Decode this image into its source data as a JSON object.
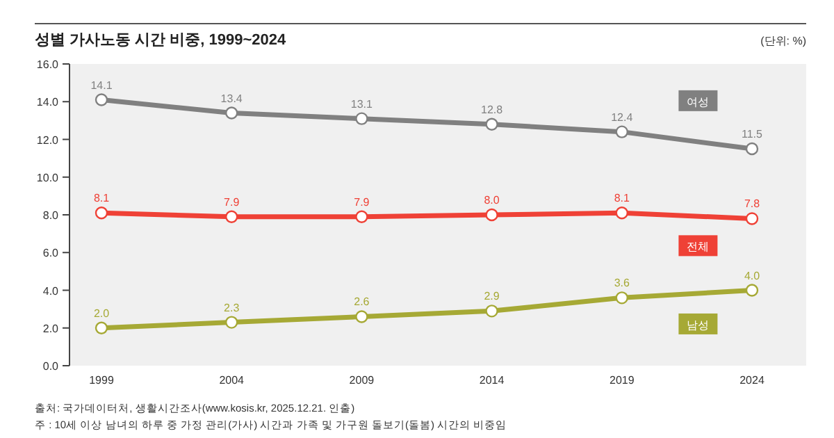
{
  "chart_data": {
    "type": "line",
    "title": "성별 가사노동 시간 비중, 1999~2024",
    "ylabel": "(단위: %)",
    "categories": [
      "1999",
      "2004",
      "2009",
      "2014",
      "2019",
      "2024"
    ],
    "series": [
      {
        "name": "여성",
        "color": "#808080",
        "values": [
          14.1,
          13.4,
          13.1,
          12.8,
          12.4,
          11.5
        ],
        "value_labels": [
          "14.1",
          "13.4",
          "13.1",
          "12.8",
          "12.4",
          "11.5"
        ]
      },
      {
        "name": "전체",
        "color": "#ef4136",
        "values": [
          8.1,
          7.9,
          7.9,
          8.0,
          8.1,
          7.8
        ],
        "value_labels": [
          "8.1",
          "7.9",
          "7.9",
          "8.0",
          "8.1",
          "7.8"
        ]
      },
      {
        "name": "남성",
        "color": "#a6a935",
        "values": [
          2.0,
          2.3,
          2.6,
          2.9,
          3.6,
          4.0
        ],
        "value_labels": [
          "2.0",
          "2.3",
          "2.6",
          "2.9",
          "3.6",
          "4.0"
        ]
      }
    ],
    "ylim": [
      0,
      16
    ],
    "yticks": [
      "0.0",
      "2.0",
      "4.0",
      "6.0",
      "8.0",
      "10.0",
      "12.0",
      "14.0",
      "16.0"
    ],
    "marker": "circle",
    "grid": false,
    "annotations": [
      "출처: 국가데이터처, 생활시간조사(www.kosis.kr, 2025.12.21. 인출)",
      "주   : 10세 이상 남녀의 하루 중 가정 관리(가사) 시간과 가족 및 가구원 돌보기(돌봄) 시간의 비중임"
    ]
  }
}
